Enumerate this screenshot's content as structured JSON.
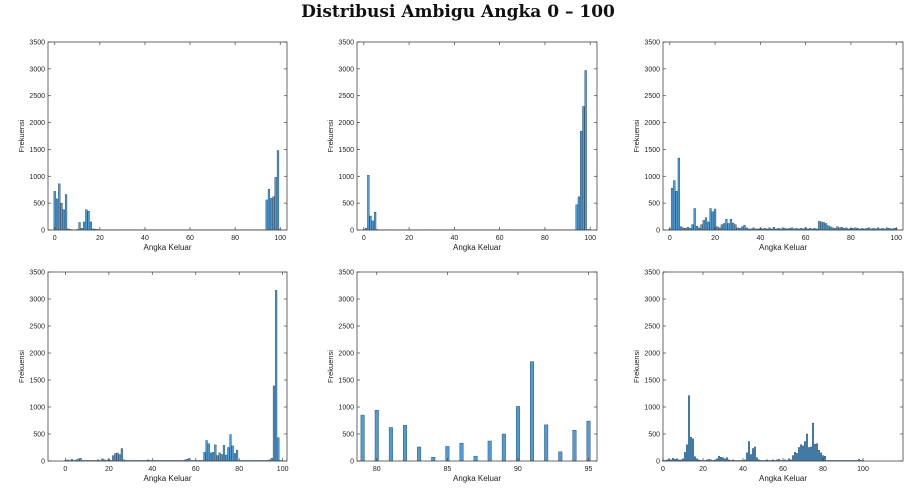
{
  "title": "Distribusi Ambigu Angka 0 – 100",
  "style": {
    "bar_fill": "#4f9cd4",
    "bar_stroke": "#1f3f5c",
    "axis_color": "#444444"
  },
  "chart_data": [
    {
      "type": "bar",
      "xlabel": "Angka Keluar",
      "ylabel": "Frekuensi",
      "xlim": [
        -3,
        103
      ],
      "ylim": [
        0,
        3500
      ],
      "xticks": [
        0,
        20,
        40,
        60,
        80,
        100
      ],
      "yticks": [
        0,
        500,
        1000,
        1500,
        2000,
        2500,
        3000,
        3500
      ],
      "bar_width": 0.8,
      "x": [
        0,
        1,
        2,
        3,
        4,
        5,
        6,
        7,
        8,
        9,
        10,
        11,
        12,
        13,
        14,
        15,
        16,
        17,
        18,
        19,
        20,
        21,
        22,
        23,
        24,
        25,
        26,
        27,
        28,
        29,
        30,
        31,
        32,
        33,
        34,
        35,
        36,
        37,
        38,
        39,
        40,
        41,
        42,
        43,
        44,
        45,
        46,
        47,
        48,
        49,
        50,
        51,
        52,
        53,
        54,
        55,
        56,
        57,
        58,
        59,
        60,
        61,
        62,
        63,
        64,
        65,
        66,
        67,
        68,
        69,
        70,
        71,
        72,
        73,
        74,
        75,
        76,
        77,
        78,
        79,
        80,
        81,
        82,
        83,
        84,
        85,
        86,
        87,
        88,
        89,
        90,
        91,
        92,
        93,
        94,
        95,
        96,
        97,
        98,
        99,
        100
      ],
      "values": [
        720,
        580,
        860,
        500,
        380,
        660,
        20,
        10,
        5,
        5,
        10,
        140,
        30,
        150,
        380,
        350,
        150,
        20,
        15,
        10,
        5,
        5,
        5,
        5,
        5,
        5,
        5,
        5,
        5,
        5,
        5,
        5,
        5,
        5,
        5,
        5,
        5,
        5,
        5,
        5,
        5,
        5,
        5,
        5,
        5,
        5,
        5,
        5,
        5,
        5,
        5,
        5,
        5,
        5,
        5,
        5,
        5,
        5,
        5,
        5,
        5,
        5,
        5,
        5,
        5,
        5,
        5,
        5,
        5,
        5,
        5,
        5,
        5,
        5,
        5,
        5,
        5,
        5,
        5,
        5,
        5,
        5,
        5,
        5,
        5,
        5,
        5,
        5,
        5,
        5,
        5,
        5,
        5,
        5,
        560,
        760,
        590,
        620,
        980,
        1480,
        10
      ]
    },
    {
      "type": "bar",
      "xlabel": "Angka Keluar",
      "ylabel": "Frekuensi",
      "xlim": [
        -3,
        103
      ],
      "ylim": [
        0,
        3500
      ],
      "xticks": [
        0,
        20,
        40,
        60,
        80,
        100
      ],
      "yticks": [
        0,
        500,
        1000,
        1500,
        2000,
        2500,
        3000,
        3500
      ],
      "bar_width": 0.8,
      "x": [
        0,
        1,
        2,
        3,
        4,
        5,
        6,
        7,
        8,
        9,
        10,
        11,
        12,
        13,
        14,
        15,
        16,
        17,
        18,
        19,
        20,
        21,
        22,
        23,
        24,
        25,
        26,
        27,
        28,
        29,
        30,
        31,
        32,
        33,
        34,
        35,
        36,
        37,
        38,
        39,
        40,
        41,
        42,
        43,
        44,
        45,
        46,
        47,
        48,
        49,
        50,
        51,
        52,
        53,
        54,
        55,
        56,
        57,
        58,
        59,
        60,
        61,
        62,
        63,
        64,
        65,
        66,
        67,
        68,
        69,
        70,
        71,
        72,
        73,
        74,
        75,
        76,
        77,
        78,
        79,
        80,
        81,
        82,
        83,
        84,
        85,
        86,
        87,
        88,
        89,
        90,
        91,
        92,
        93,
        94,
        95,
        96,
        97,
        98,
        99,
        100
      ],
      "values": [
        10,
        30,
        1020,
        260,
        170,
        330,
        10,
        5,
        5,
        5,
        5,
        5,
        5,
        5,
        5,
        5,
        5,
        5,
        5,
        5,
        5,
        5,
        5,
        5,
        5,
        5,
        5,
        5,
        5,
        5,
        5,
        5,
        5,
        5,
        5,
        5,
        5,
        5,
        5,
        5,
        5,
        5,
        5,
        5,
        5,
        5,
        5,
        5,
        5,
        5,
        5,
        5,
        5,
        5,
        5,
        5,
        5,
        5,
        5,
        5,
        5,
        5,
        5,
        5,
        5,
        5,
        5,
        5,
        5,
        5,
        5,
        5,
        5,
        5,
        5,
        5,
        5,
        5,
        5,
        5,
        5,
        5,
        5,
        5,
        5,
        5,
        5,
        5,
        5,
        5,
        5,
        5,
        5,
        5,
        470,
        620,
        1840,
        2300,
        2970,
        10,
        5
      ]
    },
    {
      "type": "bar",
      "xlabel": "Angka Keluar",
      "ylabel": "Frekuensi",
      "xlim": [
        -3,
        103
      ],
      "ylim": [
        0,
        3500
      ],
      "xticks": [
        0,
        20,
        40,
        60,
        80,
        100
      ],
      "yticks": [
        0,
        500,
        1000,
        1500,
        2000,
        2500,
        3000,
        3500
      ],
      "bar_width": 0.8,
      "x": [
        0,
        1,
        2,
        3,
        4,
        5,
        6,
        7,
        8,
        9,
        10,
        11,
        12,
        13,
        14,
        15,
        16,
        17,
        18,
        19,
        20,
        21,
        22,
        23,
        24,
        25,
        26,
        27,
        28,
        29,
        30,
        31,
        32,
        33,
        34,
        35,
        36,
        37,
        38,
        39,
        40,
        41,
        42,
        43,
        44,
        45,
        46,
        47,
        48,
        49,
        50,
        51,
        52,
        53,
        54,
        55,
        56,
        57,
        58,
        59,
        60,
        61,
        62,
        63,
        64,
        65,
        66,
        67,
        68,
        69,
        70,
        71,
        72,
        73,
        74,
        75,
        76,
        77,
        78,
        79,
        80,
        81,
        82,
        83,
        84,
        85,
        86,
        87,
        88,
        89,
        90,
        91,
        92,
        93,
        94,
        95,
        96,
        97,
        98,
        99,
        100
      ],
      "values": [
        20,
        780,
        920,
        720,
        1340,
        60,
        40,
        30,
        50,
        30,
        100,
        400,
        70,
        40,
        100,
        180,
        230,
        150,
        400,
        340,
        390,
        60,
        40,
        100,
        120,
        200,
        120,
        200,
        130,
        100,
        40,
        30,
        60,
        90,
        40,
        20,
        20,
        40,
        20,
        20,
        30,
        20,
        30,
        20,
        40,
        20,
        50,
        20,
        30,
        20,
        40,
        30,
        20,
        30,
        40,
        20,
        30,
        20,
        30,
        20,
        40,
        20,
        30,
        20,
        30,
        20,
        160,
        150,
        140,
        120,
        80,
        60,
        40,
        30,
        60,
        40,
        50,
        30,
        40,
        20,
        30,
        30,
        40,
        30,
        20,
        30,
        20,
        30,
        40,
        20,
        30,
        20,
        40,
        20,
        30,
        20,
        40,
        30,
        20,
        30,
        30
      ]
    },
    {
      "type": "bar",
      "xlabel": "Angka Keluar",
      "ylabel": "Frekuensi",
      "xlim": [
        -8,
        102
      ],
      "ylim": [
        0,
        3500
      ],
      "xticks": [
        0,
        20,
        40,
        60,
        80,
        100
      ],
      "yticks": [
        0,
        500,
        1000,
        1500,
        2000,
        2500,
        3000,
        3500
      ],
      "bar_width": 0.8,
      "x": [
        0,
        1,
        2,
        3,
        4,
        5,
        6,
        7,
        8,
        9,
        10,
        11,
        12,
        13,
        14,
        15,
        16,
        17,
        18,
        19,
        20,
        21,
        22,
        23,
        24,
        25,
        26,
        27,
        28,
        29,
        30,
        31,
        32,
        33,
        34,
        35,
        36,
        37,
        38,
        39,
        40,
        41,
        42,
        43,
        44,
        45,
        46,
        47,
        48,
        49,
        50,
        51,
        52,
        53,
        54,
        55,
        56,
        57,
        58,
        59,
        60,
        61,
        62,
        63,
        64,
        65,
        66,
        67,
        68,
        69,
        70,
        71,
        72,
        73,
        74,
        75,
        76,
        77,
        78,
        79,
        80,
        81,
        82,
        83,
        84,
        85,
        86,
        87,
        88,
        89,
        90,
        91,
        92,
        93,
        94,
        95,
        96,
        97,
        98,
        99,
        100
      ],
      "values": [
        10,
        20,
        10,
        30,
        10,
        20,
        40,
        50,
        10,
        10,
        10,
        10,
        10,
        10,
        10,
        20,
        10,
        40,
        20,
        10,
        30,
        10,
        100,
        140,
        150,
        120,
        230,
        20,
        10,
        10,
        10,
        10,
        10,
        10,
        10,
        10,
        10,
        10,
        20,
        10,
        10,
        10,
        10,
        10,
        10,
        10,
        10,
        10,
        10,
        10,
        10,
        10,
        10,
        10,
        10,
        20,
        30,
        50,
        10,
        10,
        10,
        10,
        10,
        10,
        160,
        380,
        320,
        150,
        160,
        300,
        100,
        150,
        120,
        290,
        110,
        250,
        490,
        280,
        140,
        200,
        10,
        10,
        10,
        10,
        10,
        10,
        10,
        10,
        10,
        10,
        10,
        10,
        10,
        10,
        20,
        50,
        1390,
        3160,
        430,
        10,
        5
      ]
    },
    {
      "type": "bar",
      "xlabel": "Angka Keluar",
      "ylabel": "Frekuensi",
      "xlim": [
        78.6,
        95.6
      ],
      "ylim": [
        0,
        3500
      ],
      "xticks": [
        80,
        85,
        90,
        95
      ],
      "yticks": [
        0,
        500,
        1000,
        1500,
        2000,
        2500,
        3000,
        3500
      ],
      "bar_width": 0.25,
      "x": [
        79,
        80,
        81,
        82,
        83,
        84,
        85,
        86,
        87,
        88,
        89,
        90,
        91,
        92,
        93,
        94,
        95
      ],
      "values": [
        850,
        940,
        620,
        660,
        260,
        70,
        270,
        330,
        90,
        370,
        500,
        1010,
        1840,
        670,
        170,
        570,
        740
      ]
    },
    {
      "type": "bar",
      "xlabel": "Angka Keluar",
      "ylabel": "Frekuensi",
      "xlim": [
        0,
        120
      ],
      "ylim": [
        0,
        3500
      ],
      "xticks": [
        0,
        20,
        40,
        60,
        80,
        100
      ],
      "yticks": [
        0,
        500,
        1000,
        1500,
        2000,
        2500,
        3000,
        3500
      ],
      "bar_width": 0.8,
      "x": [
        0,
        1,
        2,
        3,
        4,
        5,
        6,
        7,
        8,
        9,
        10,
        11,
        12,
        13,
        14,
        15,
        16,
        17,
        18,
        19,
        20,
        21,
        22,
        23,
        24,
        25,
        26,
        27,
        28,
        29,
        30,
        31,
        32,
        33,
        34,
        35,
        36,
        37,
        38,
        39,
        40,
        41,
        42,
        43,
        44,
        45,
        46,
        47,
        48,
        49,
        50,
        51,
        52,
        53,
        54,
        55,
        56,
        57,
        58,
        59,
        60,
        61,
        62,
        63,
        64,
        65,
        66,
        67,
        68,
        69,
        70,
        71,
        72,
        73,
        74,
        75,
        76,
        77,
        78,
        79,
        80,
        81,
        82,
        83,
        84,
        85,
        86,
        87,
        88,
        89,
        90,
        91,
        92,
        93,
        94,
        95,
        96,
        97,
        98,
        99,
        100
      ],
      "values": [
        10,
        10,
        20,
        40,
        20,
        50,
        30,
        40,
        20,
        20,
        40,
        160,
        300,
        1210,
        440,
        410,
        80,
        40,
        20,
        10,
        10,
        10,
        20,
        30,
        20,
        10,
        20,
        40,
        90,
        70,
        60,
        40,
        60,
        20,
        10,
        20,
        10,
        10,
        10,
        10,
        10,
        20,
        150,
        360,
        120,
        230,
        260,
        60,
        20,
        10,
        10,
        10,
        20,
        10,
        10,
        20,
        10,
        20,
        30,
        10,
        10,
        20,
        10,
        40,
        20,
        100,
        160,
        140,
        250,
        300,
        280,
        360,
        500,
        250,
        260,
        700,
        310,
        320,
        200,
        150,
        100,
        90,
        10,
        10,
        10,
        10,
        10,
        10,
        10,
        10,
        10,
        10,
        10,
        10,
        10,
        10,
        10,
        10,
        30,
        10,
        10
      ]
    }
  ]
}
